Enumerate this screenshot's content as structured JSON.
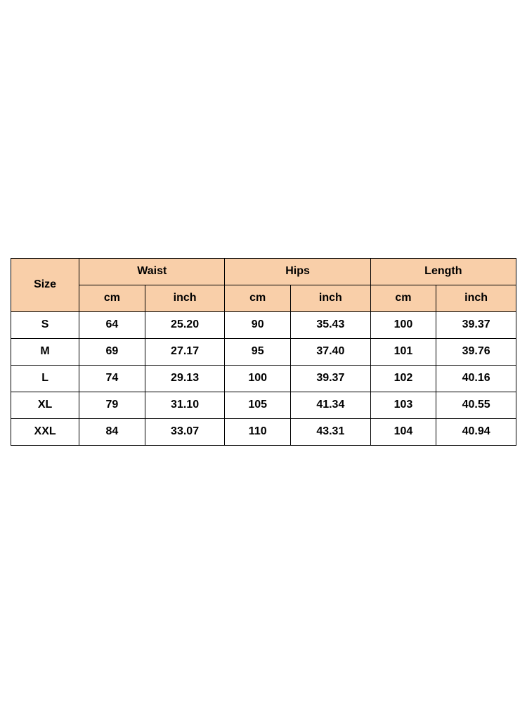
{
  "table": {
    "type": "table",
    "header_bg": "#f9cfa9",
    "body_bg": "#ffffff",
    "border_color": "#000000",
    "text_color": "#000000",
    "font_weight": 700,
    "font_size_pt": 12,
    "size_label": "Size",
    "measurements": [
      "Waist",
      "Hips",
      "Length"
    ],
    "unit_labels": {
      "cm": "cm",
      "inch": "inch"
    },
    "columns": [
      "Size",
      "Waist cm",
      "Waist inch",
      "Hips cm",
      "Hips inch",
      "Length cm",
      "Length inch"
    ],
    "rows": [
      {
        "size": "S",
        "waist_cm": "64",
        "waist_in": "25.20",
        "hips_cm": "90",
        "hips_in": "35.43",
        "length_cm": "100",
        "length_in": "39.37"
      },
      {
        "size": "M",
        "waist_cm": "69",
        "waist_in": "27.17",
        "hips_cm": "95",
        "hips_in": "37.40",
        "length_cm": "101",
        "length_in": "39.76"
      },
      {
        "size": "L",
        "waist_cm": "74",
        "waist_in": "29.13",
        "hips_cm": "100",
        "hips_in": "39.37",
        "length_cm": "102",
        "length_in": "40.16"
      },
      {
        "size": "XL",
        "waist_cm": "79",
        "waist_in": "31.10",
        "hips_cm": "105",
        "hips_in": "41.34",
        "length_cm": "103",
        "length_in": "40.55"
      },
      {
        "size": "XXL",
        "waist_cm": "84",
        "waist_in": "33.07",
        "hips_cm": "110",
        "hips_in": "43.31",
        "length_cm": "104",
        "length_in": "40.94"
      }
    ]
  }
}
